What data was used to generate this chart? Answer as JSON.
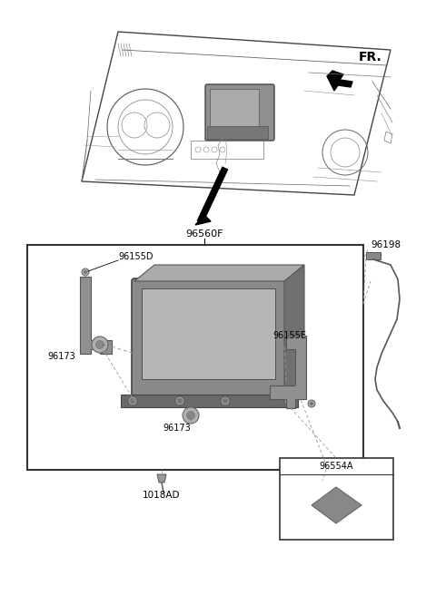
{
  "background_color": "#ffffff",
  "fig_width": 4.8,
  "fig_height": 6.56,
  "dpi": 100,
  "labels": {
    "FR": "FR.",
    "96560F": "96560F",
    "96155D": "96155D",
    "96155E": "96155E",
    "96173_left": "96173",
    "96173_bottom": "96173",
    "96198": "96198",
    "1018AD": "1018AD",
    "96554A": "96554A"
  },
  "colors": {
    "line": "#000000",
    "mid_gray": "#999999",
    "dark_gray": "#555555",
    "light_gray": "#cccccc",
    "part_body": "#888888",
    "part_dark": "#666666",
    "box_border": "#333333",
    "dashed": "#777777"
  }
}
